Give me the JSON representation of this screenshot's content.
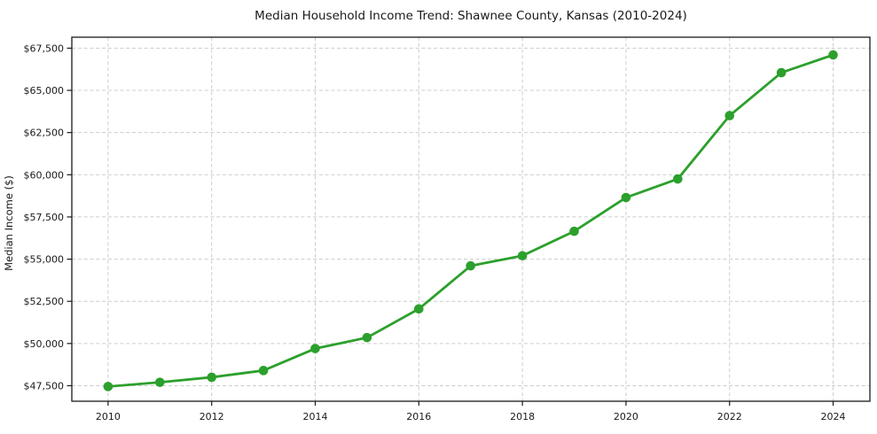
{
  "chart_data": {
    "type": "line",
    "title": "Median Household Income Trend: Shawnee County, Kansas (2010-2024)",
    "xlabel": "",
    "ylabel": "Median Income ($)",
    "series": [
      {
        "name": "Median household income",
        "x": [
          2010,
          2011,
          2012,
          2013,
          2014,
          2015,
          2016,
          2017,
          2018,
          2019,
          2020,
          2021,
          2022,
          2023,
          2024
        ],
        "values": [
          47450,
          47700,
          48000,
          48400,
          49700,
          50350,
          52050,
          54600,
          55200,
          56650,
          58650,
          59750,
          63500,
          66050,
          67100
        ]
      }
    ],
    "xlim": [
      2009.3,
      2024.71
    ],
    "ylim": [
      46580,
      68150
    ],
    "x_ticks": [
      2010,
      2012,
      2014,
      2016,
      2018,
      2020,
      2022,
      2024
    ],
    "x_tick_labels": [
      "2010",
      "2012",
      "2014",
      "2016",
      "2018",
      "2020",
      "2022",
      "2024"
    ],
    "y_ticks": [
      47500,
      50000,
      52500,
      55000,
      57500,
      60000,
      62500,
      65000,
      67500
    ],
    "y_tick_labels": [
      "$47,500",
      "$50,000",
      "$52,500",
      "$55,000",
      "$57,500",
      "$60,000",
      "$62,500",
      "$65,000",
      "$67,500"
    ],
    "grid": true,
    "grid_style": "dashed",
    "legend": false,
    "line_color": "#2ca02c",
    "marker": "circle",
    "marker_radius": 5.3,
    "line_width": 2.8,
    "grid_color": "#cccccc",
    "spine_color": "#1a1a1a",
    "text_color": "#1a1a1a",
    "background_color": "#ffffff"
  }
}
